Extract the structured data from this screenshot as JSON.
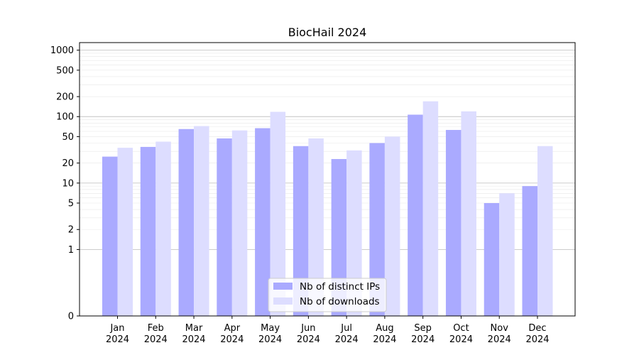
{
  "chart_data": {
    "type": "bar",
    "title": "BiocHail 2024",
    "xlabel": "",
    "ylabel": "",
    "scale": "symlog",
    "grid": true,
    "legend_position": "bottom-center",
    "categories": [
      [
        "Jan",
        "2024"
      ],
      [
        "Feb",
        "2024"
      ],
      [
        "Mar",
        "2024"
      ],
      [
        "Apr",
        "2024"
      ],
      [
        "May",
        "2024"
      ],
      [
        "Jun",
        "2024"
      ],
      [
        "Jul",
        "2024"
      ],
      [
        "Aug",
        "2024"
      ],
      [
        "Sep",
        "2024"
      ],
      [
        "Oct",
        "2024"
      ],
      [
        "Nov",
        "2024"
      ],
      [
        "Dec",
        "2024"
      ]
    ],
    "y_ticks": [
      {
        "value": 0,
        "label": "0"
      },
      {
        "value": 1,
        "label": "1"
      },
      {
        "value": 2,
        "label": "2"
      },
      {
        "value": 5,
        "label": "5"
      },
      {
        "value": 10,
        "label": "10"
      },
      {
        "value": 20,
        "label": "20"
      },
      {
        "value": 50,
        "label": "50"
      },
      {
        "value": 100,
        "label": "100"
      },
      {
        "value": 200,
        "label": "200"
      },
      {
        "value": 500,
        "label": "500"
      },
      {
        "value": 1000,
        "label": "1000"
      }
    ],
    "ylim": [
      0,
      1300
    ],
    "series": [
      {
        "name": "Nb of distinct IPs",
        "color": "#aaaaff",
        "values": [
          25,
          35,
          65,
          47,
          67,
          36,
          23,
          40,
          107,
          63,
          5,
          9
        ]
      },
      {
        "name": "Nb of downloads",
        "color": "#ddddff",
        "values": [
          34,
          42,
          72,
          62,
          118,
          47,
          31,
          50,
          170,
          120,
          7,
          36
        ]
      }
    ]
  }
}
